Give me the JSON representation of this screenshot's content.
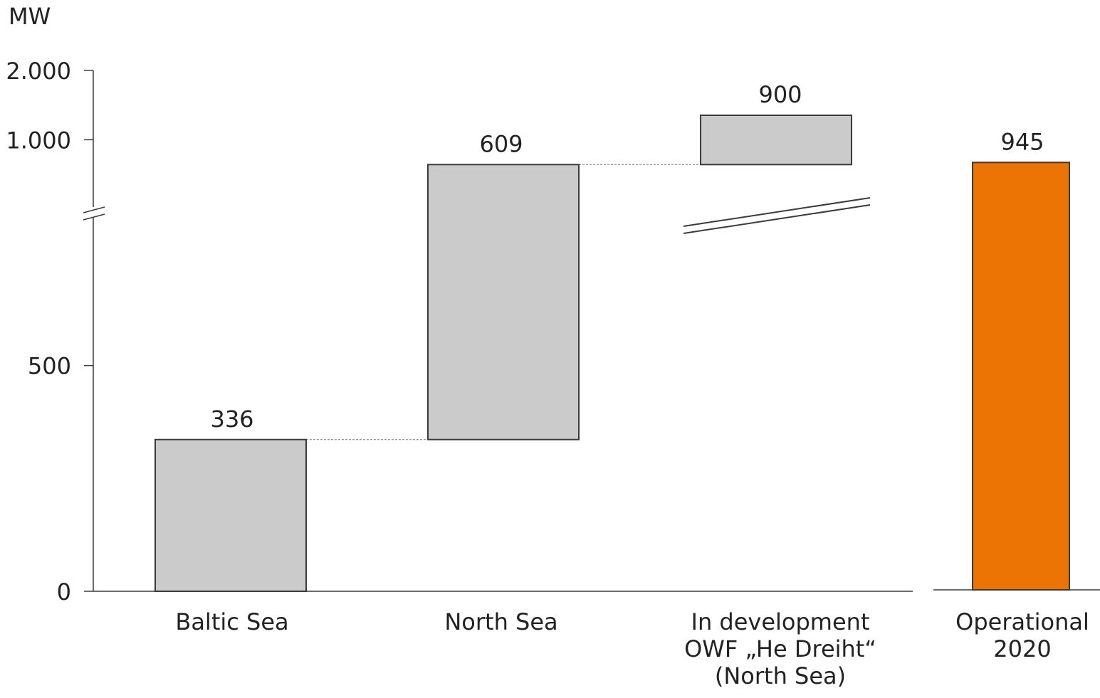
{
  "chart_data": {
    "type": "bar",
    "variant": "waterfall",
    "unit_label": "MW",
    "y_ticks": [
      {
        "value": 0,
        "label": "0"
      },
      {
        "value": 500,
        "label": "500"
      },
      {
        "value": 1000,
        "label": "1.000"
      },
      {
        "value": 2000,
        "label": "2.000"
      }
    ],
    "axis_break": "between 1.000 and 2.000",
    "categories": [
      [
        "Baltic Sea"
      ],
      [
        "North Sea"
      ],
      [
        "In development",
        "OWF „He Dreiht“",
        "(North Sea)"
      ],
      [
        "Operational",
        "2020"
      ]
    ],
    "bars": [
      {
        "label": "336",
        "value": 336,
        "base": 0,
        "kind": "step"
      },
      {
        "label": "609",
        "value": 609,
        "base": 336,
        "kind": "step"
      },
      {
        "label": "900",
        "value": 900,
        "base": 945,
        "kind": "step",
        "broken": true
      },
      {
        "label": "945",
        "value": 945,
        "base": 0,
        "kind": "total"
      }
    ],
    "colors": {
      "step": "#cbcbcb",
      "total": "#ec7404",
      "outline": "#3a3a3a",
      "axis": "#3a3a3a",
      "connector": "#777777"
    },
    "grid": false,
    "legend": "none"
  }
}
